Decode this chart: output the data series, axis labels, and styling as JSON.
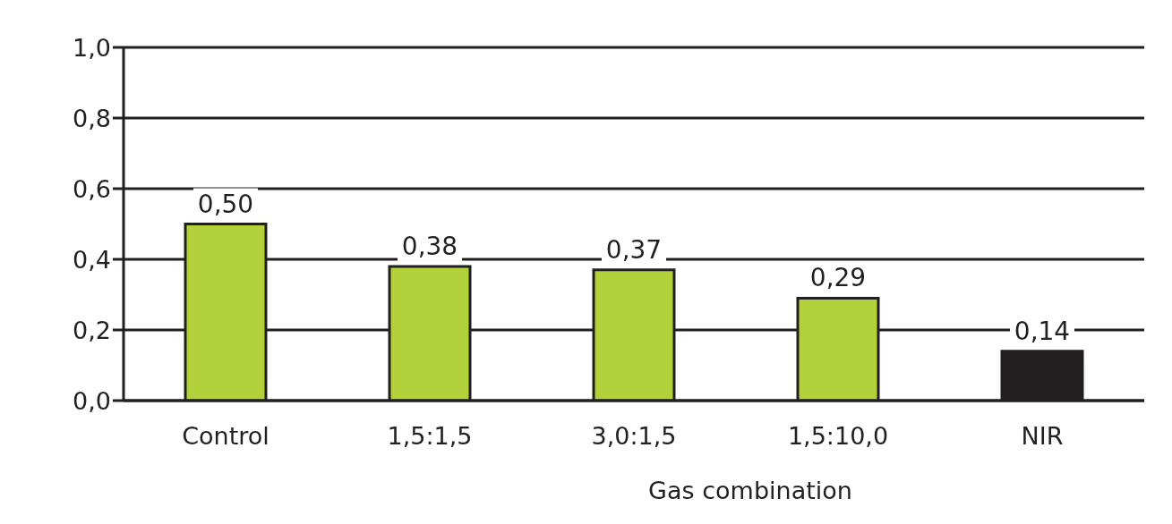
{
  "chart_data": {
    "type": "bar",
    "xlabel": "Gas combination",
    "categories": [
      "Control",
      "1,5:1,5",
      "3,0:1,5",
      "1,5:10,0",
      "NIR"
    ],
    "values": [
      0.5,
      0.38,
      0.37,
      0.29,
      0.14
    ],
    "colors": [
      "#b2d13a",
      "#b2d13a",
      "#b2d13a",
      "#b2d13a",
      "#231f20"
    ],
    "value_labels": [
      "0,50",
      "0,38",
      "0,37",
      "0,29",
      "0,14"
    ],
    "ylim": [
      0,
      1
    ],
    "yticks": [
      {
        "value": 0,
        "label": "0,0"
      },
      {
        "value": 0.2,
        "label": "0,2"
      },
      {
        "value": 0.4,
        "label": "0,4"
      },
      {
        "value": 0.6,
        "label": "0,6"
      },
      {
        "value": 0.8,
        "label": "0,8"
      },
      {
        "value": 1,
        "label": "1,0"
      }
    ],
    "grid": "y"
  }
}
